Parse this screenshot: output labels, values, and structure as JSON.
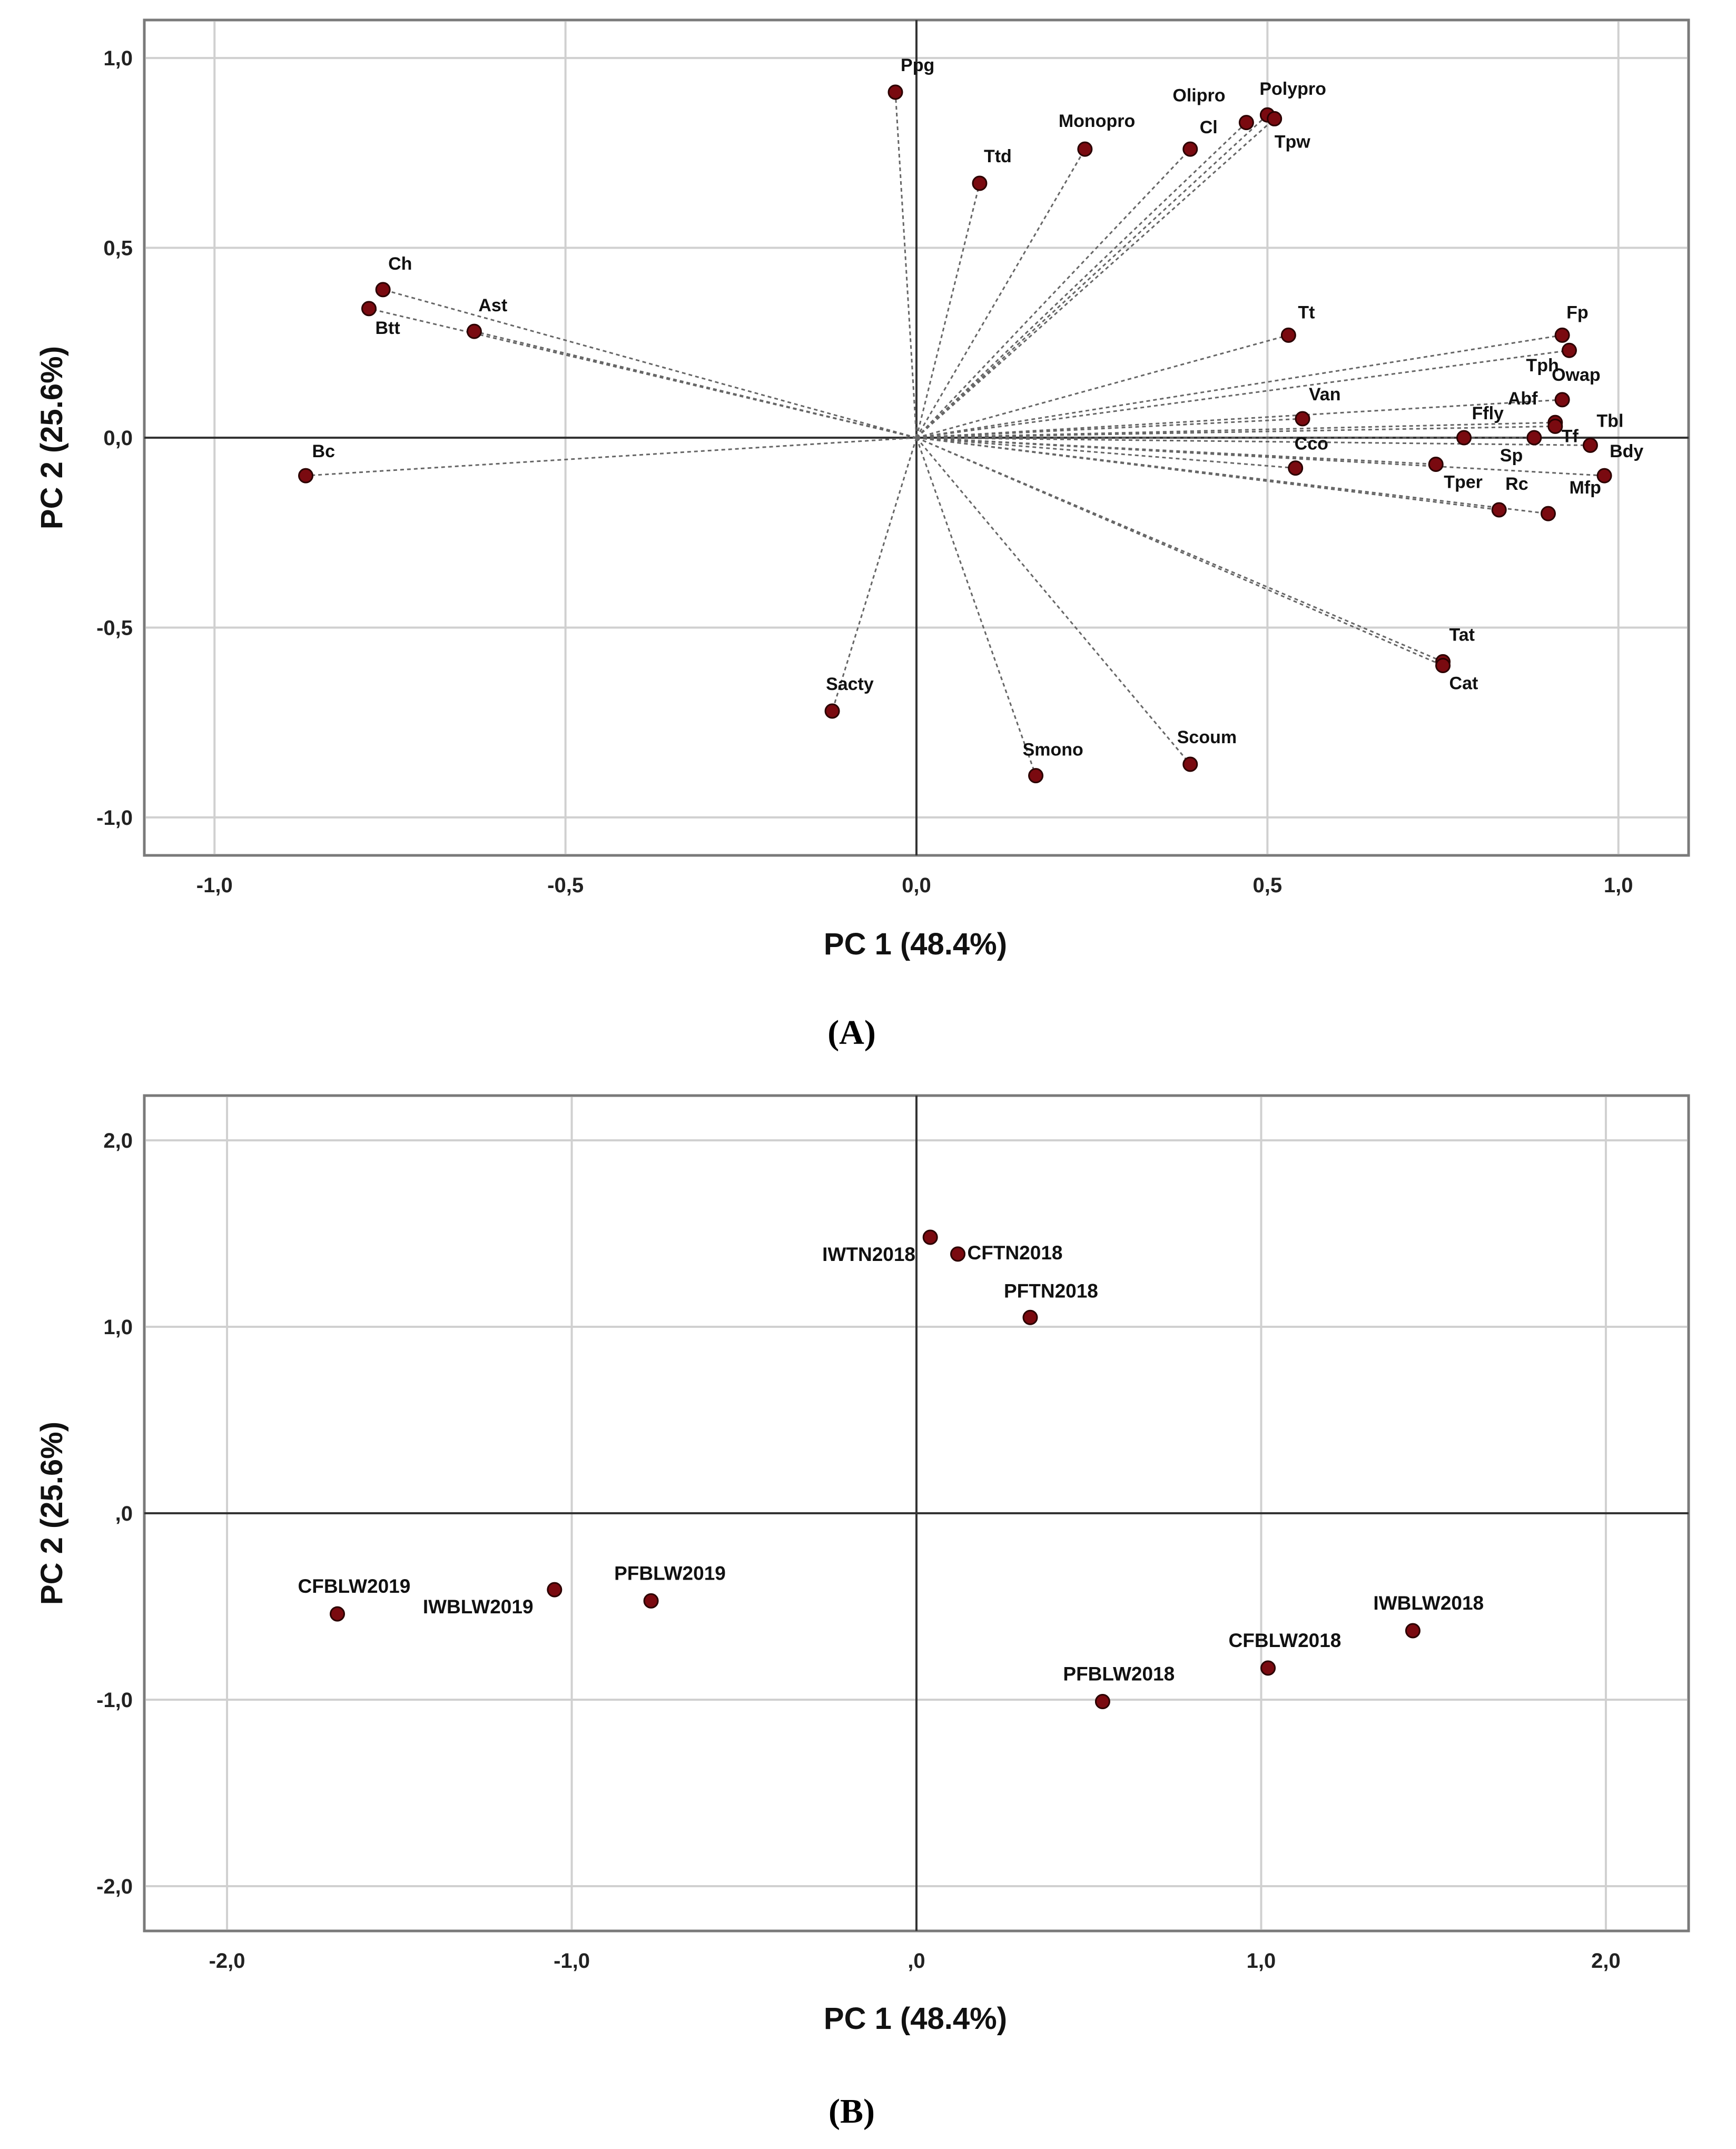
{
  "chart_data": [
    {
      "type": "scatter",
      "variant": "loading-plot",
      "caption": "(A)",
      "xlabel": "PC 1 (48.4%)",
      "ylabel": "PC 2 (25.6%)",
      "xlim": [
        -1.1,
        1.1
      ],
      "ylim": [
        -1.1,
        1.1
      ],
      "xticks": [
        -1.0,
        -0.5,
        0.0,
        0.5,
        1.0
      ],
      "xtick_labels": [
        "-1,0",
        "-0,5",
        "0,0",
        "0,5",
        "1,0"
      ],
      "yticks": [
        1.0,
        0.5,
        0.0,
        -0.5,
        -1.0
      ],
      "ytick_labels": [
        "1,0",
        "0,5",
        "0,0",
        "-0,5",
        "-1,0"
      ],
      "grid": true,
      "origin_lines": true,
      "vectors_from_origin": true,
      "points": [
        {
          "name": "Ppg",
          "x": -0.03,
          "y": 0.91
        },
        {
          "name": "Monopro",
          "x": 0.24,
          "y": 0.76
        },
        {
          "name": "Olipro",
          "x": 0.47,
          "y": 0.83
        },
        {
          "name": "Polypro",
          "x": 0.5,
          "y": 0.85
        },
        {
          "name": "Tpw",
          "x": 0.51,
          "y": 0.84
        },
        {
          "name": "Cl",
          "x": 0.39,
          "y": 0.76
        },
        {
          "name": "Ttd",
          "x": 0.09,
          "y": 0.67
        },
        {
          "name": "Ch",
          "x": -0.76,
          "y": 0.39
        },
        {
          "name": "Btt",
          "x": -0.78,
          "y": 0.34
        },
        {
          "name": "Ast",
          "x": -0.63,
          "y": 0.28
        },
        {
          "name": "Bc",
          "x": -0.87,
          "y": -0.1
        },
        {
          "name": "Tt",
          "x": 0.53,
          "y": 0.27
        },
        {
          "name": "Fp",
          "x": 0.92,
          "y": 0.27
        },
        {
          "name": "Tph",
          "x": 0.93,
          "y": 0.23
        },
        {
          "name": "Owap",
          "x": 0.92,
          "y": 0.1
        },
        {
          "name": "Van",
          "x": 0.55,
          "y": 0.05
        },
        {
          "name": "Abf",
          "x": 0.91,
          "y": 0.04
        },
        {
          "name": "Ffly",
          "x": 0.78,
          "y": 0.0
        },
        {
          "name": "Tbl",
          "x": 0.96,
          "y": -0.02
        },
        {
          "name": "Sp",
          "x": 0.88,
          "y": 0.0
        },
        {
          "name": "Tf",
          "x": 0.91,
          "y": 0.03
        },
        {
          "name": "Cco",
          "x": 0.54,
          "y": -0.08
        },
        {
          "name": "Tper",
          "x": 0.74,
          "y": -0.07
        },
        {
          "name": "Bdy",
          "x": 0.98,
          "y": -0.1
        },
        {
          "name": "Rc",
          "x": 0.83,
          "y": -0.19
        },
        {
          "name": "Mfp",
          "x": 0.9,
          "y": -0.2
        },
        {
          "name": "Tat",
          "x": 0.75,
          "y": -0.59
        },
        {
          "name": "Cat",
          "x": 0.75,
          "y": -0.6
        },
        {
          "name": "Sacty",
          "x": -0.12,
          "y": -0.72
        },
        {
          "name": "Smono",
          "x": 0.17,
          "y": -0.89
        },
        {
          "name": "Scoum",
          "x": 0.39,
          "y": -0.86
        }
      ]
    },
    {
      "type": "scatter",
      "variant": "score-plot",
      "caption": "(B)",
      "xlabel": "PC 1 (48.4%)",
      "ylabel": "PC 2 (25.6%)",
      "xlim": [
        -2.24,
        2.24
      ],
      "ylim": [
        -2.24,
        2.24
      ],
      "xticks": [
        -2.0,
        -1.0,
        0.0,
        1.0,
        2.0
      ],
      "xtick_labels": [
        "-2,0",
        "-1,0",
        ",0",
        "1,0",
        "2,0"
      ],
      "yticks": [
        2.0,
        1.0,
        0.0,
        -1.0,
        -2.0
      ],
      "ytick_labels": [
        "2,0",
        "1,0",
        ",0",
        "-1,0",
        "-2,0"
      ],
      "grid": true,
      "origin_lines": true,
      "vectors_from_origin": false,
      "points": [
        {
          "name": "IWTN2018",
          "x": 0.04,
          "y": 1.48
        },
        {
          "name": "CFTN2018",
          "x": 0.12,
          "y": 1.39
        },
        {
          "name": "PFTN2018",
          "x": 0.33,
          "y": 1.05
        },
        {
          "name": "CFBLW2019",
          "x": -1.68,
          "y": -0.54
        },
        {
          "name": "IWBLW2019",
          "x": -1.05,
          "y": -0.41
        },
        {
          "name": "PFBLW2019",
          "x": -0.77,
          "y": -0.47
        },
        {
          "name": "IWBLW2018",
          "x": 1.44,
          "y": -0.63
        },
        {
          "name": "CFBLW2018",
          "x": 1.02,
          "y": -0.83
        },
        {
          "name": "PFBLW2018",
          "x": 0.54,
          "y": -1.01
        }
      ]
    }
  ]
}
